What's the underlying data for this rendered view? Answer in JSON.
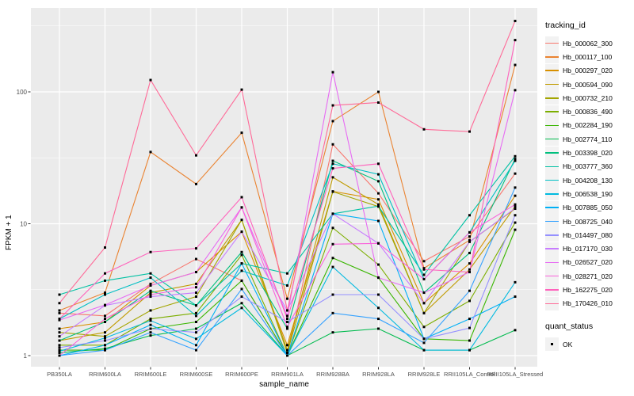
{
  "chart_data": {
    "type": "line",
    "title": "",
    "xlabel": "sample_name",
    "ylabel": "FPKM + 1",
    "y_scale": "log10",
    "y_ticks": [
      1,
      10,
      100
    ],
    "ylim": [
      0.93,
      440
    ],
    "grid": true,
    "legend_position": "right",
    "panel_bg": "#EBEBEB",
    "grid_color": "#FFFFFF",
    "point_shape": "filled-square",
    "point_color": "#000000",
    "categories": [
      "PB350LA",
      "RRIM600LA",
      "RRIM600LE",
      "RRIM600SE",
      "RRIM600PE",
      "RRIM901LA",
      "RRIM928BA",
      "RRIM928LA",
      "RRIM928LE",
      "RRII105LA_Control",
      "RRII105LA_Stressed"
    ],
    "series": [
      {
        "name": "Hb_000062_300",
        "color": "#F8766D",
        "values": [
          2.1,
          2.0,
          3.5,
          5.4,
          3.7,
          1.0,
          40,
          17,
          5.2,
          8.0,
          24
        ]
      },
      {
        "name": "Hb_000117_100",
        "color": "#EA8331",
        "values": [
          2.2,
          3.0,
          35,
          20,
          49,
          2.7,
          60,
          100,
          4.6,
          7.5,
          160
        ]
      },
      {
        "name": "Hb_000297_020",
        "color": "#D89000",
        "values": [
          1.6,
          1.8,
          3.4,
          4.3,
          8.7,
          1.2,
          17.6,
          15.3,
          2.5,
          5.0,
          16.3
        ]
      },
      {
        "name": "Hb_000594_090",
        "color": "#C09B00",
        "values": [
          1.3,
          1.5,
          3.0,
          3.5,
          10.7,
          1.1,
          22.5,
          14,
          2.1,
          4.5,
          13.5
        ]
      },
      {
        "name": "Hb_000732_210",
        "color": "#A3A500",
        "values": [
          1.5,
          1.4,
          2.2,
          2.8,
          10.7,
          1.05,
          17.5,
          13.5,
          2.1,
          7.3,
          13
        ]
      },
      {
        "name": "Hb_000836_490",
        "color": "#7CAE00",
        "values": [
          1.2,
          1.2,
          1.9,
          2.1,
          5.8,
          1.0,
          9.3,
          4.9,
          1.65,
          2.6,
          10.2
        ]
      },
      {
        "name": "Hb_002284_190",
        "color": "#39B600",
        "values": [
          1.1,
          1.1,
          1.6,
          1.8,
          3.7,
          1.0,
          5.5,
          3.9,
          1.34,
          1.3,
          9.0
        ]
      },
      {
        "name": "Hb_002774_110",
        "color": "#00BB4E",
        "values": [
          1.05,
          1.13,
          1.42,
          1.6,
          2.5,
          1.0,
          1.5,
          1.6,
          1.1,
          1.1,
          1.56
        ]
      },
      {
        "name": "Hb_003398_020",
        "color": "#00BF7D",
        "values": [
          1.3,
          1.8,
          3.1,
          2.4,
          6.1,
          1.6,
          30,
          21,
          3.0,
          6.0,
          31
        ]
      },
      {
        "name": "Hb_003777_360",
        "color": "#00C1A3",
        "values": [
          2.9,
          3.7,
          4.2,
          2.4,
          5.0,
          4.2,
          11.9,
          13.6,
          4.1,
          11.6,
          32.5
        ]
      },
      {
        "name": "Hb_004208_130",
        "color": "#00BFC4",
        "values": [
          1.9,
          2.9,
          3.9,
          2.0,
          4.4,
          3.4,
          28.5,
          23.7,
          3.8,
          8.6,
          30
        ]
      },
      {
        "name": "Hb_006538_190",
        "color": "#00BAE0",
        "values": [
          1.08,
          1.36,
          1.84,
          1.34,
          2.3,
          1.0,
          4.7,
          2.3,
          1.1,
          1.1,
          3.6
        ]
      },
      {
        "name": "Hb_007885_050",
        "color": "#00B0F6",
        "values": [
          1.0,
          1.2,
          1.71,
          1.2,
          5.0,
          1.0,
          11.9,
          10.5,
          1.34,
          1.9,
          2.8
        ]
      },
      {
        "name": "Hb_008725_040",
        "color": "#35A2FF",
        "values": [
          1.0,
          1.1,
          1.5,
          1.1,
          3.2,
          1.0,
          2.1,
          1.9,
          1.25,
          3.1,
          18.8
        ]
      },
      {
        "name": "Hb_014497_080",
        "color": "#9590FF",
        "values": [
          1.15,
          1.3,
          1.6,
          1.5,
          2.8,
          1.8,
          2.9,
          2.9,
          1.34,
          1.62,
          11.6
        ]
      },
      {
        "name": "Hb_017170_030",
        "color": "#C77CFF",
        "values": [
          1.4,
          2.4,
          2.8,
          3.0,
          8.7,
          2.2,
          11.9,
          7.1,
          2.5,
          7.3,
          13.1
        ]
      },
      {
        "name": "Hb_026527_020",
        "color": "#E76BF3",
        "values": [
          1.86,
          2.42,
          3.4,
          4.3,
          13.3,
          2.0,
          141,
          3.9,
          3.0,
          4.3,
          103
        ]
      },
      {
        "name": "Hb_028271_020",
        "color": "#FA62DB",
        "values": [
          1.0,
          1.9,
          2.9,
          3.3,
          13.3,
          1.65,
          7.0,
          7.1,
          3.8,
          8.6,
          14
        ]
      },
      {
        "name": "Hb_162275_020",
        "color": "#FF62BC",
        "values": [
          1.9,
          4.2,
          6.1,
          6.5,
          15.9,
          1.9,
          26.3,
          28.5,
          4.5,
          4.3,
          247
        ]
      },
      {
        "name": "Hb_170426_010",
        "color": "#FF6A98",
        "values": [
          2.5,
          6.6,
          123,
          33,
          104,
          2.2,
          79,
          83,
          52,
          50,
          345
        ]
      }
    ]
  },
  "legend": {
    "tracking_title": "tracking_id",
    "quant_title": "quant_status",
    "quant_items": [
      {
        "label": "OK"
      }
    ]
  }
}
